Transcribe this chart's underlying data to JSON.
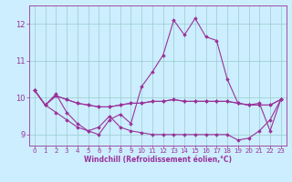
{
  "xlabel": "Windchill (Refroidissement éolien,°C)",
  "bg_color": "#cceeff",
  "grid_color": "#99cccc",
  "line_color": "#993399",
  "xlim": [
    -0.5,
    23.5
  ],
  "ylim": [
    8.7,
    12.5
  ],
  "yticks": [
    9,
    10,
    11,
    12
  ],
  "xticks": [
    0,
    1,
    2,
    3,
    4,
    5,
    6,
    7,
    8,
    9,
    10,
    11,
    12,
    13,
    14,
    15,
    16,
    17,
    18,
    19,
    20,
    21,
    22,
    23
  ],
  "lines": [
    [
      10.2,
      9.8,
      10.1,
      9.6,
      9.3,
      9.1,
      9.0,
      9.4,
      9.55,
      9.3,
      10.3,
      10.7,
      11.15,
      12.1,
      11.7,
      12.15,
      11.65,
      11.55,
      10.5,
      9.85,
      9.8,
      9.85,
      9.1,
      9.95
    ],
    [
      10.2,
      9.8,
      10.05,
      9.95,
      9.85,
      9.8,
      9.75,
      9.75,
      9.8,
      9.85,
      9.85,
      9.9,
      9.9,
      9.95,
      9.9,
      9.9,
      9.9,
      9.9,
      9.9,
      9.85,
      9.8,
      9.8,
      9.8,
      9.95
    ],
    [
      10.2,
      9.8,
      9.6,
      9.4,
      9.2,
      9.1,
      9.2,
      9.5,
      9.2,
      9.1,
      9.05,
      9.0,
      9.0,
      9.0,
      9.0,
      9.0,
      9.0,
      9.0,
      9.0,
      8.85,
      8.9,
      9.1,
      9.4,
      9.95
    ],
    [
      10.2,
      9.8,
      10.05,
      9.95,
      9.85,
      9.8,
      9.75,
      9.75,
      9.8,
      9.85,
      9.85,
      9.9,
      9.9,
      9.95,
      9.9,
      9.9,
      9.9,
      9.9,
      9.9,
      9.85,
      9.8,
      9.8,
      9.8,
      9.95
    ]
  ],
  "tick_fontsize": 5.0,
  "ylabel_fontsize": 6.0,
  "xlabel_fontsize": 5.5
}
